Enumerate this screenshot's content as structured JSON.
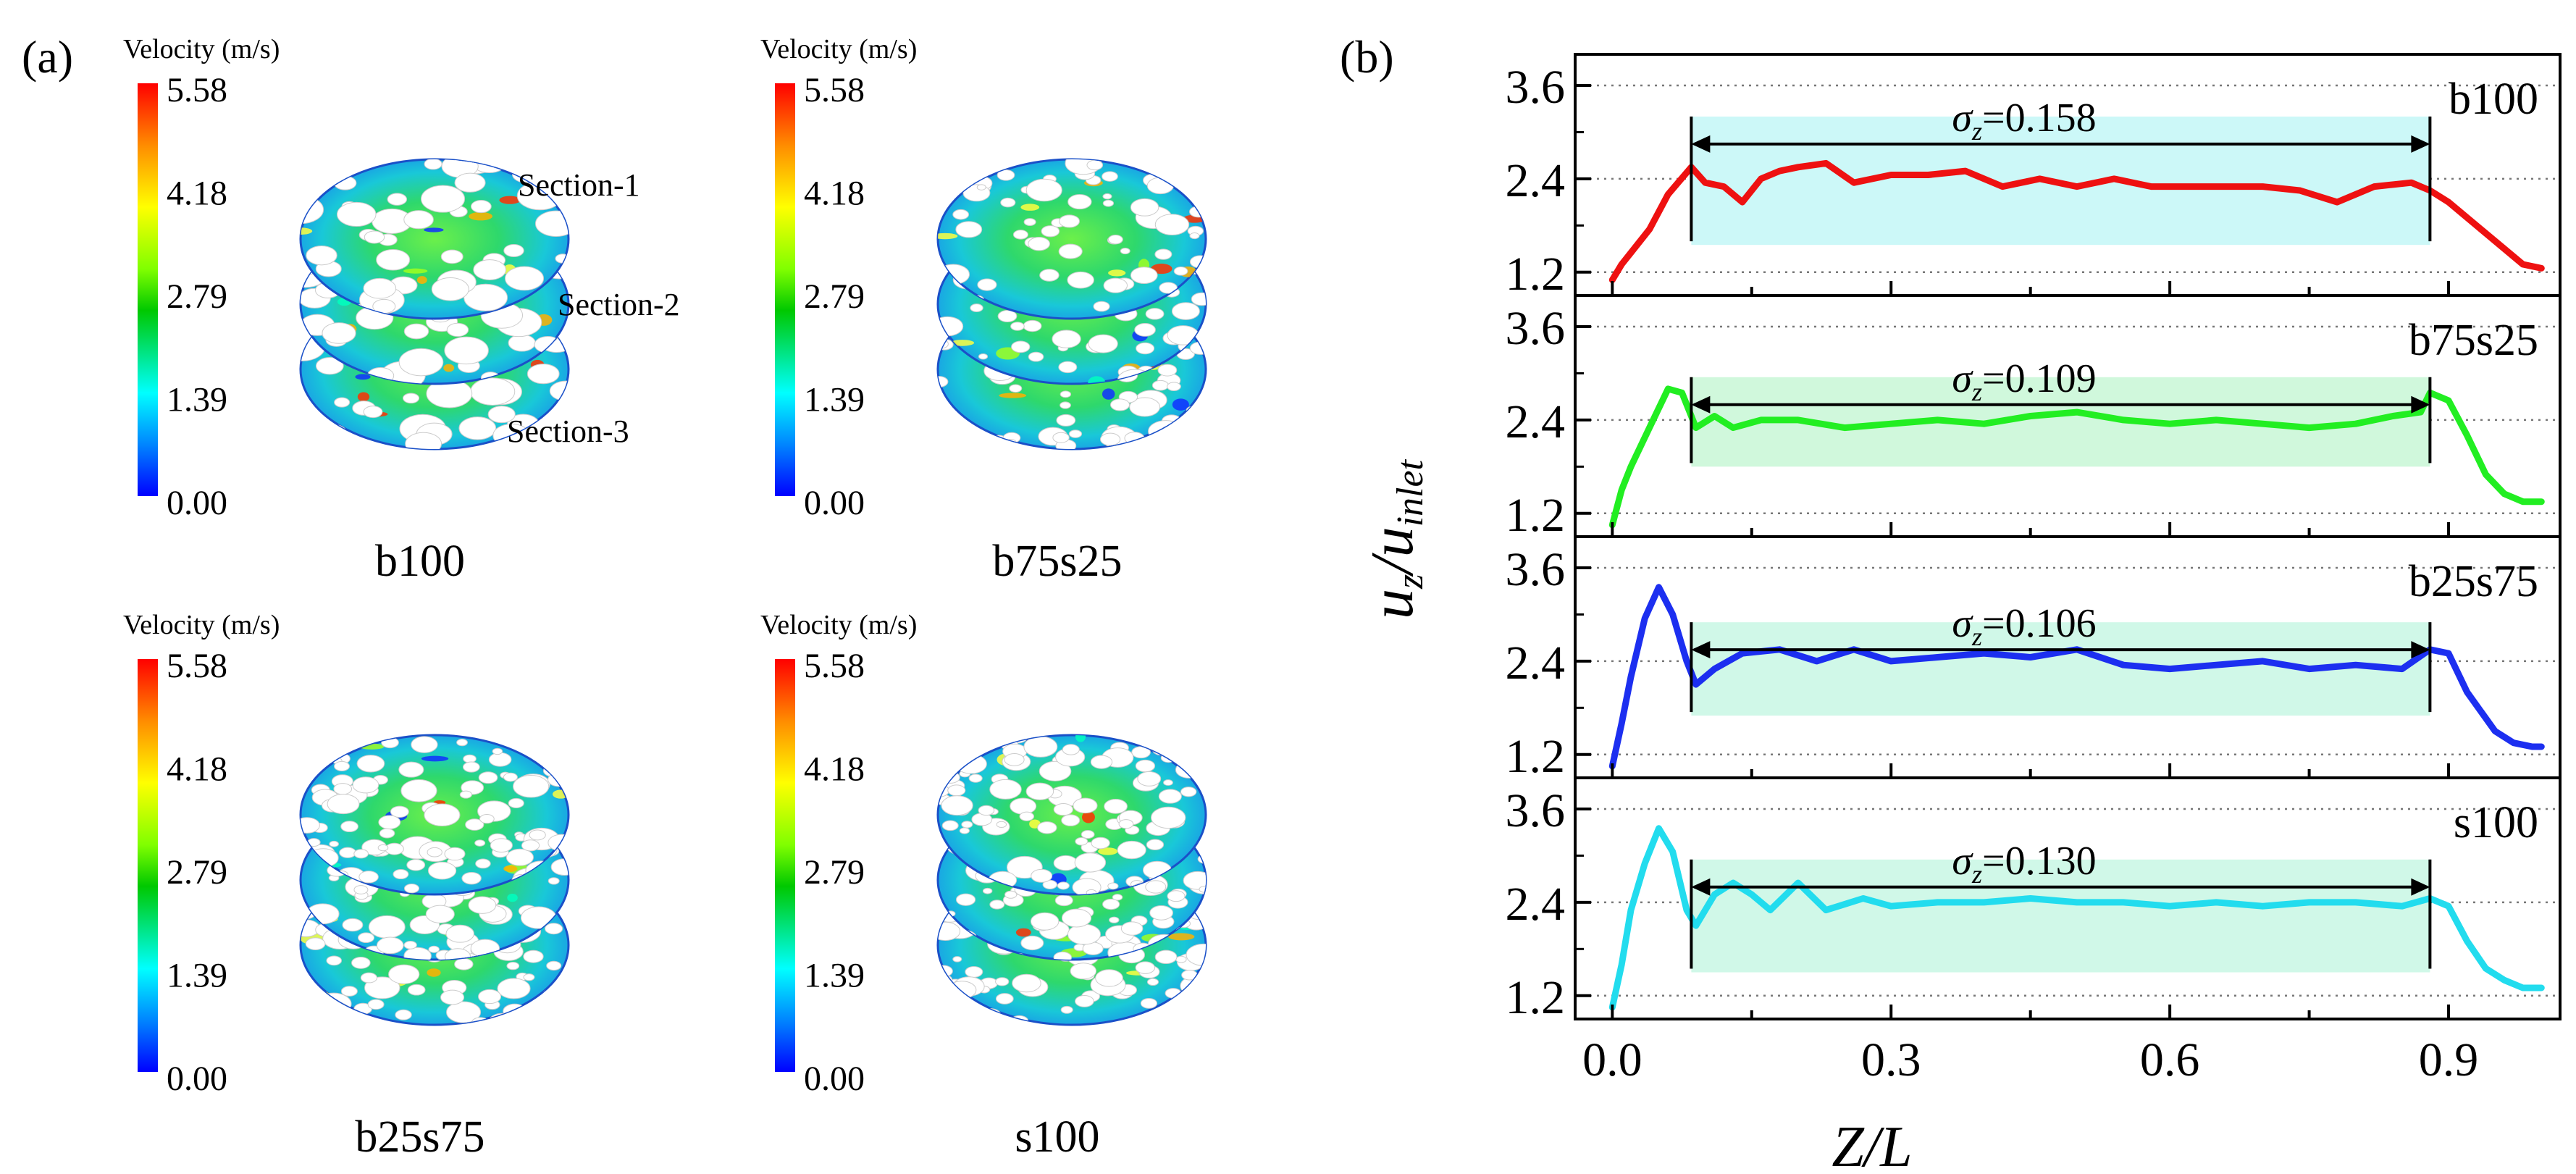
{
  "panel_a": {
    "label": "(a)",
    "colorbar": {
      "title": "Velocity (m/s)",
      "ticks": [
        "5.58",
        "4.18",
        "2.79",
        "1.39",
        "0.00"
      ],
      "colors": [
        "#ff0000",
        "#ff8c00",
        "#ffff00",
        "#80ff00",
        "#00c800",
        "#00ffff",
        "#0080ff",
        "#0000ff"
      ]
    },
    "cases": [
      {
        "name": "b100",
        "sections": [
          "Section-1",
          "Section-2",
          "Section-3"
        ]
      },
      {
        "name": "b75s25",
        "sections": []
      },
      {
        "name": "b25s75",
        "sections": []
      },
      {
        "name": "s100",
        "sections": []
      }
    ]
  },
  "chart_data": {
    "label": "(b)",
    "type": "line",
    "xlabel": "Z/L",
    "ylabel_main": "u",
    "ylabel_sub_z": "z",
    "ylabel_slash": "/u",
    "ylabel_sub_inlet": "inlet",
    "x_ticks": [
      "0.0",
      "0.3",
      "0.6",
      "0.9"
    ],
    "xlim": [
      -0.04,
      1.02
    ],
    "ylim": [
      0.9,
      4.0
    ],
    "y_ticks": [
      "3.6",
      "2.4",
      "1.2"
    ],
    "y_tick_values": [
      3.6,
      2.4,
      1.2
    ],
    "grid": "horizontal dotted",
    "range_marker": [
      0.085,
      0.88
    ],
    "panels": [
      {
        "name": "b100",
        "color": "#ee1111",
        "band_color": "#ccf8f8",
        "sigma": "=0.158",
        "band": [
          1.55,
          3.2
        ],
        "x": [
          0,
          0.01,
          0.02,
          0.04,
          0.06,
          0.085,
          0.1,
          0.12,
          0.14,
          0.16,
          0.18,
          0.2,
          0.23,
          0.26,
          0.3,
          0.34,
          0.38,
          0.42,
          0.46,
          0.5,
          0.54,
          0.58,
          0.62,
          0.66,
          0.7,
          0.74,
          0.78,
          0.82,
          0.86,
          0.88,
          0.9,
          0.93,
          0.96,
          0.98,
          1.0
        ],
        "y": [
          1.1,
          1.3,
          1.45,
          1.75,
          2.2,
          2.55,
          2.35,
          2.3,
          2.1,
          2.4,
          2.5,
          2.55,
          2.6,
          2.35,
          2.45,
          2.45,
          2.5,
          2.3,
          2.4,
          2.3,
          2.4,
          2.3,
          2.3,
          2.3,
          2.3,
          2.25,
          2.1,
          2.3,
          2.35,
          2.25,
          2.1,
          1.8,
          1.5,
          1.3,
          1.25
        ]
      },
      {
        "name": "b75s25",
        "color": "#22ee22",
        "band_color": "#d0f8dc",
        "sigma": "=0.109",
        "band": [
          1.8,
          2.95
        ],
        "x": [
          0,
          0.01,
          0.02,
          0.04,
          0.06,
          0.075,
          0.09,
          0.11,
          0.13,
          0.16,
          0.2,
          0.25,
          0.3,
          0.35,
          0.4,
          0.45,
          0.5,
          0.55,
          0.6,
          0.65,
          0.7,
          0.75,
          0.8,
          0.84,
          0.87,
          0.88,
          0.9,
          0.92,
          0.94,
          0.96,
          0.98,
          1.0
        ],
        "y": [
          1.05,
          1.5,
          1.8,
          2.3,
          2.8,
          2.75,
          2.3,
          2.45,
          2.3,
          2.4,
          2.4,
          2.3,
          2.35,
          2.4,
          2.35,
          2.45,
          2.5,
          2.4,
          2.35,
          2.4,
          2.35,
          2.3,
          2.35,
          2.45,
          2.5,
          2.75,
          2.65,
          2.2,
          1.7,
          1.45,
          1.35,
          1.35
        ]
      },
      {
        "name": "b25s75",
        "color": "#1c2ff0",
        "band_color": "#d0f8e8",
        "sigma": "=0.106",
        "band": [
          1.7,
          2.9
        ],
        "x": [
          0,
          0.01,
          0.02,
          0.035,
          0.05,
          0.065,
          0.08,
          0.09,
          0.11,
          0.14,
          0.18,
          0.22,
          0.26,
          0.3,
          0.35,
          0.4,
          0.45,
          0.5,
          0.55,
          0.6,
          0.65,
          0.7,
          0.75,
          0.8,
          0.85,
          0.88,
          0.9,
          0.92,
          0.95,
          0.97,
          0.99,
          1.0
        ],
        "y": [
          1.05,
          1.6,
          2.2,
          2.95,
          3.35,
          3.0,
          2.4,
          2.1,
          2.3,
          2.5,
          2.55,
          2.4,
          2.55,
          2.4,
          2.45,
          2.5,
          2.45,
          2.55,
          2.35,
          2.3,
          2.35,
          2.4,
          2.3,
          2.35,
          2.3,
          2.55,
          2.5,
          2.0,
          1.5,
          1.35,
          1.3,
          1.3
        ]
      },
      {
        "name": "s100",
        "color": "#22dcee",
        "band_color": "#d0f8e8",
        "sigma": "=0.130",
        "band": [
          1.5,
          2.95
        ],
        "x": [
          0,
          0.01,
          0.02,
          0.035,
          0.05,
          0.065,
          0.08,
          0.09,
          0.11,
          0.13,
          0.15,
          0.17,
          0.2,
          0.23,
          0.27,
          0.3,
          0.35,
          0.4,
          0.45,
          0.5,
          0.55,
          0.6,
          0.65,
          0.7,
          0.75,
          0.8,
          0.85,
          0.88,
          0.9,
          0.92,
          0.94,
          0.96,
          0.98,
          1.0
        ],
        "y": [
          1.05,
          1.6,
          2.3,
          2.9,
          3.35,
          3.05,
          2.3,
          2.1,
          2.5,
          2.65,
          2.5,
          2.3,
          2.65,
          2.3,
          2.45,
          2.35,
          2.4,
          2.4,
          2.45,
          2.4,
          2.4,
          2.35,
          2.4,
          2.35,
          2.4,
          2.4,
          2.35,
          2.45,
          2.35,
          1.9,
          1.55,
          1.4,
          1.3,
          1.3
        ]
      }
    ]
  }
}
